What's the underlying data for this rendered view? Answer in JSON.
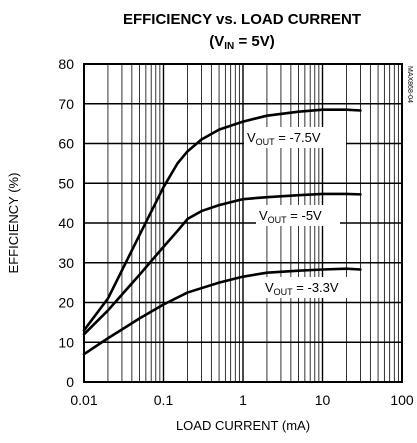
{
  "chart_data": {
    "type": "line",
    "title_line1": "EFFICIENCY vs. LOAD CURRENT",
    "title_line2_prefix": "(V",
    "title_line2_sub": "IN",
    "title_line2_suffix": " = 5V)",
    "xlabel": "LOAD CURRENT (mA)",
    "ylabel": "EFFICIENCY (%)",
    "x_scale": "log",
    "xlim": [
      0.01,
      100
    ],
    "ylim": [
      0,
      80
    ],
    "x_ticks": [
      0.01,
      0.1,
      1,
      10,
      100
    ],
    "x_tick_labels": [
      "0.01",
      "0.1",
      "1",
      "10",
      "100"
    ],
    "y_ticks": [
      0,
      10,
      20,
      30,
      40,
      50,
      60,
      70,
      80
    ],
    "y_tick_labels": [
      "0",
      "10",
      "20",
      "30",
      "40",
      "50",
      "60",
      "70",
      "80"
    ],
    "grid": true,
    "part_number": "MAX868-04",
    "series": [
      {
        "label_prefix": "V",
        "label_sub": "OUT",
        "label_suffix": " = -7.5V",
        "x": [
          0.01,
          0.02,
          0.05,
          0.1,
          0.15,
          0.2,
          0.3,
          0.5,
          1,
          2,
          5,
          10,
          20,
          30
        ],
        "y": [
          13,
          21,
          37,
          49,
          55,
          58,
          61,
          63.5,
          65.5,
          67,
          68,
          68.5,
          68.5,
          68.3
        ]
      },
      {
        "label_prefix": "V",
        "label_sub": "OUT",
        "label_suffix": " = -5V",
        "x": [
          0.01,
          0.02,
          0.05,
          0.1,
          0.15,
          0.2,
          0.3,
          0.5,
          1,
          2,
          5,
          10,
          20,
          30
        ],
        "y": [
          12,
          18,
          27,
          34,
          38,
          41,
          43,
          44.5,
          46,
          46.5,
          47,
          47.3,
          47.3,
          47.2
        ]
      },
      {
        "label_prefix": "V",
        "label_sub": "OUT",
        "label_suffix": " = -3.3V",
        "x": [
          0.01,
          0.02,
          0.05,
          0.1,
          0.2,
          0.5,
          1,
          2,
          5,
          10,
          20,
          30
        ],
        "y": [
          7,
          11,
          16,
          19.5,
          22.5,
          25,
          26.5,
          27.5,
          28,
          28.3,
          28.5,
          28.3
        ]
      }
    ]
  }
}
